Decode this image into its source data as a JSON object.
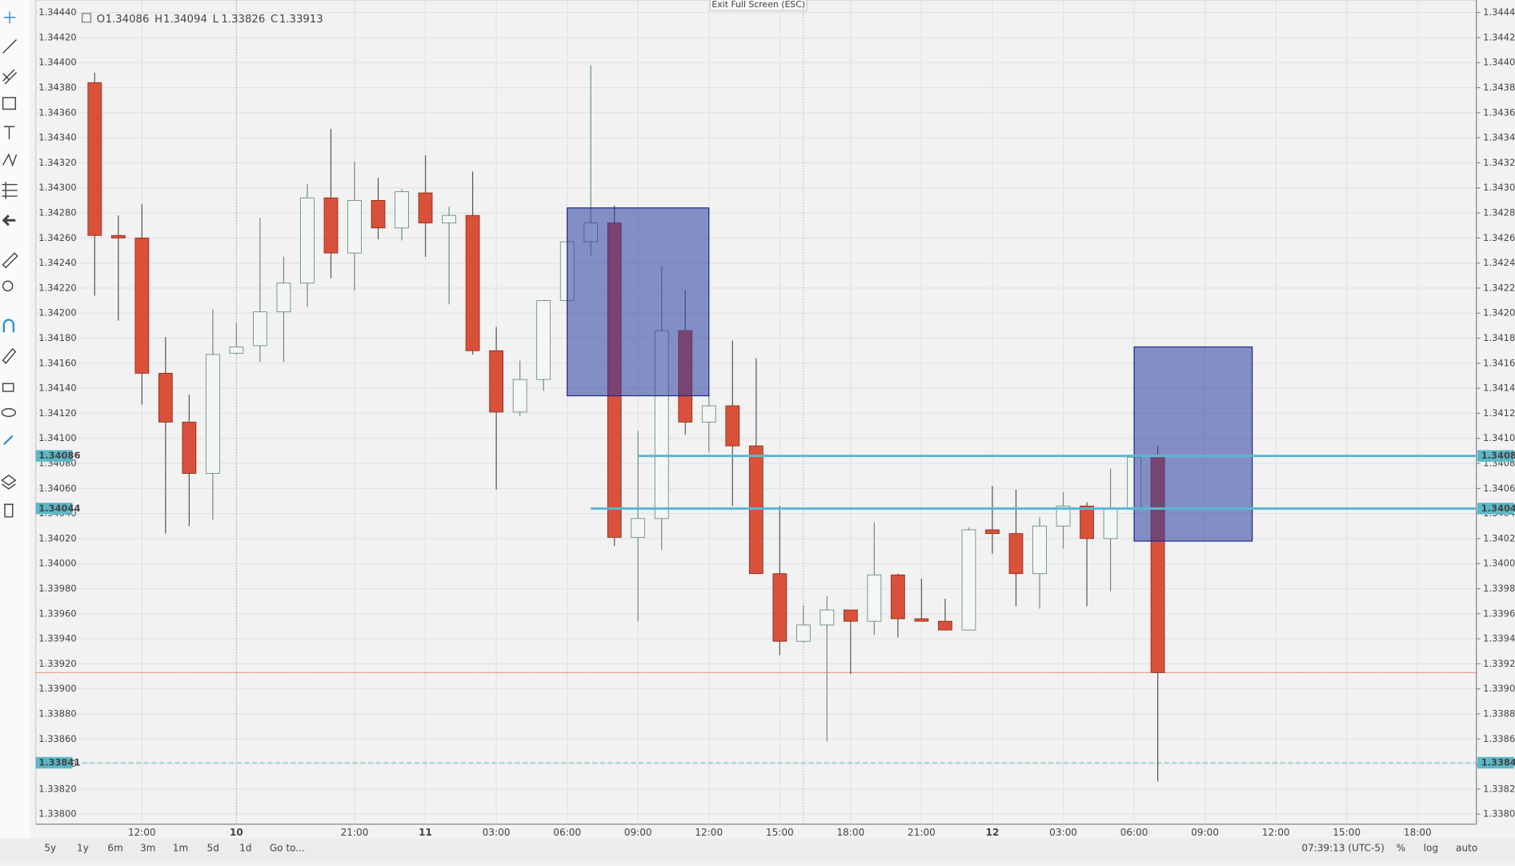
{
  "chart_data": {
    "type": "candlestick",
    "categories": [
      null,
      null,
      "12:00",
      null,
      null,
      null,
      "10",
      null,
      null,
      null,
      null,
      "21:00",
      null,
      null,
      "11",
      null,
      null,
      "03:00",
      null,
      null,
      "06:00",
      null,
      null,
      "09:00",
      null,
      null,
      "12:00",
      null,
      null,
      "15:00",
      null,
      null,
      "18:00",
      null,
      null,
      "21:00",
      null,
      null,
      "12",
      null,
      null,
      "03:00",
      null,
      null,
      "06:00",
      null,
      null,
      "09:00",
      null,
      null,
      "12:00",
      null,
      null,
      "15:00",
      null,
      null,
      "18:00",
      null,
      null
    ],
    "open": [
      1.34384,
      1.34262,
      1.3426,
      1.34152,
      1.34113,
      1.34072,
      1.34168,
      1.34174,
      1.34201,
      1.34224,
      1.34292,
      1.34248,
      1.3429,
      1.34268,
      1.34296,
      1.34272,
      1.34278,
      1.3417,
      1.34121,
      1.34147,
      1.3421,
      1.34257,
      1.34272,
      1.34021,
      1.34036,
      1.34186,
      1.34113,
      1.34126,
      1.34094,
      1.33992,
      1.33938,
      1.33951,
      1.33963,
      1.33954,
      1.33991,
      1.33956,
      1.33954,
      1.33947,
      1.34027,
      1.34024,
      1.33992,
      1.3403,
      1.34046,
      1.3402,
      1.34044,
      1.34086,
      null,
      null,
      null,
      null,
      null,
      null,
      null,
      null,
      null,
      null,
      null,
      null,
      null
    ],
    "high": [
      1.34392,
      1.34278,
      1.34287,
      1.34181,
      1.34135,
      1.34203,
      1.34192,
      1.34276,
      1.34245,
      1.34303,
      1.34347,
      1.34321,
      1.34308,
      1.34299,
      1.34326,
      1.34285,
      1.34313,
      1.34189,
      1.34162,
      1.3421,
      1.34257,
      1.34398,
      1.34286,
      1.34106,
      1.34238,
      1.34218,
      1.34135,
      1.34178,
      1.34164,
      1.34046,
      1.33967,
      1.33974,
      1.33963,
      1.34033,
      1.33992,
      1.33988,
      1.33972,
      1.34029,
      1.34062,
      1.34059,
      1.34037,
      1.34057,
      1.34049,
      1.34076,
      1.34085,
      1.34094,
      null,
      null,
      null,
      null,
      null,
      null,
      null,
      null,
      null,
      null,
      null,
      null,
      null
    ],
    "low": [
      1.34214,
      1.34194,
      1.34127,
      1.34024,
      1.3403,
      1.34035,
      1.34167,
      1.34161,
      1.34161,
      1.34205,
      1.34228,
      1.34218,
      1.34259,
      1.34258,
      1.34245,
      1.34207,
      1.34167,
      1.34059,
      1.34118,
      1.34138,
      1.3421,
      1.34246,
      1.34014,
      1.33954,
      1.34011,
      1.34103,
      1.34089,
      1.34046,
      1.33992,
      1.33927,
      1.33937,
      1.33858,
      1.33912,
      1.33943,
      1.33941,
      1.33954,
      1.33947,
      1.33947,
      1.34008,
      1.33966,
      1.33964,
      1.34012,
      1.33966,
      1.33978,
      1.34044,
      1.33826,
      null,
      null,
      null,
      null,
      null,
      null,
      null,
      null,
      null,
      null,
      null,
      null,
      null
    ],
    "close": [
      1.34262,
      1.3426,
      1.34152,
      1.34113,
      1.34072,
      1.34167,
      1.34173,
      1.34201,
      1.34224,
      1.34292,
      1.34248,
      1.3429,
      1.34268,
      1.34297,
      1.34272,
      1.34278,
      1.3417,
      1.34121,
      1.34147,
      1.3421,
      1.34257,
      1.34272,
      1.34021,
      1.34036,
      1.34186,
      1.34113,
      1.34126,
      1.34094,
      1.33992,
      1.33938,
      1.33951,
      1.33963,
      1.33954,
      1.33991,
      1.33956,
      1.33954,
      1.33947,
      1.34027,
      1.34024,
      1.33992,
      1.3403,
      1.34046,
      1.3402,
      1.34044,
      1.34085,
      1.33913,
      null,
      null,
      null,
      null,
      null,
      null,
      null,
      null,
      null,
      null,
      null,
      null,
      null
    ],
    "up_color": "#f4f6f4",
    "down_color": "#d9513a",
    "ylim": [
      1.33792,
      1.3445
    ],
    "yticks": [
      {
        "value": 1.3444,
        "label": "1.34440"
      },
      {
        "value": 1.3442,
        "label": "1.34420"
      },
      {
        "value": 1.344,
        "label": "1.34400"
      },
      {
        "value": 1.3438,
        "label": "1.34380"
      },
      {
        "value": 1.3436,
        "label": "1.34360"
      },
      {
        "value": 1.3434,
        "label": "1.34340"
      },
      {
        "value": 1.3432,
        "label": "1.34320"
      },
      {
        "value": 1.343,
        "label": "1.34300"
      },
      {
        "value": 1.3428,
        "label": "1.34280"
      },
      {
        "value": 1.3426,
        "label": "1.34260"
      },
      {
        "value": 1.3424,
        "label": "1.34240"
      },
      {
        "value": 1.3422,
        "label": "1.34220"
      },
      {
        "value": 1.342,
        "label": "1.34200"
      },
      {
        "value": 1.3418,
        "label": "1.34180"
      },
      {
        "value": 1.3416,
        "label": "1.34160"
      },
      {
        "value": 1.3414,
        "label": "1.34140"
      },
      {
        "value": 1.3412,
        "label": "1.34120"
      },
      {
        "value": 1.341,
        "label": "1.34100"
      },
      {
        "value": 1.3408,
        "label": "1.34080"
      },
      {
        "value": 1.3406,
        "label": "1.34060"
      },
      {
        "value": 1.3404,
        "label": "1.34040"
      },
      {
        "value": 1.3402,
        "label": "1.34020"
      },
      {
        "value": 1.34,
        "label": "1.34000"
      },
      {
        "value": 1.3398,
        "label": "1.33980"
      },
      {
        "value": 1.3396,
        "label": "1.33960"
      },
      {
        "value": 1.3394,
        "label": "1.33940"
      },
      {
        "value": 1.3392,
        "label": "1.33920"
      },
      {
        "value": 1.339,
        "label": "1.33900"
      },
      {
        "value": 1.3388,
        "label": "1.33880"
      },
      {
        "value": 1.3386,
        "label": "1.33860"
      },
      {
        "value": 1.3384,
        "label": "1.33840"
      },
      {
        "value": 1.3382,
        "label": "1.33820"
      },
      {
        "value": 1.338,
        "label": "1.33800"
      }
    ],
    "grid": true,
    "legend_keys": [
      "O",
      "H",
      "L",
      "C"
    ],
    "horizontal_lines": [
      {
        "value": 1.34086,
        "from": 23
      },
      {
        "value": 1.34044,
        "from": 21
      }
    ],
    "dashed_line": 1.33841,
    "rectangles": [
      {
        "top": 1.34284,
        "bottom": 1.34134,
        "from": 20,
        "to": 26
      },
      {
        "top": 1.34173,
        "bottom": 1.34018,
        "from": 44,
        "to": 49
      }
    ],
    "vlines": [
      6,
      30
    ]
  },
  "ui": {
    "exit_fullscreen": "Exit Full Screen (ESC)",
    "timeframes": [
      "5y",
      "1y",
      "6m",
      "3m",
      "1m",
      "5d",
      "1d"
    ],
    "goto": "Go to...",
    "clock": "07:39:13 (UTC-5)",
    "scale_buttons": [
      "%",
      "log",
      "auto"
    ]
  }
}
